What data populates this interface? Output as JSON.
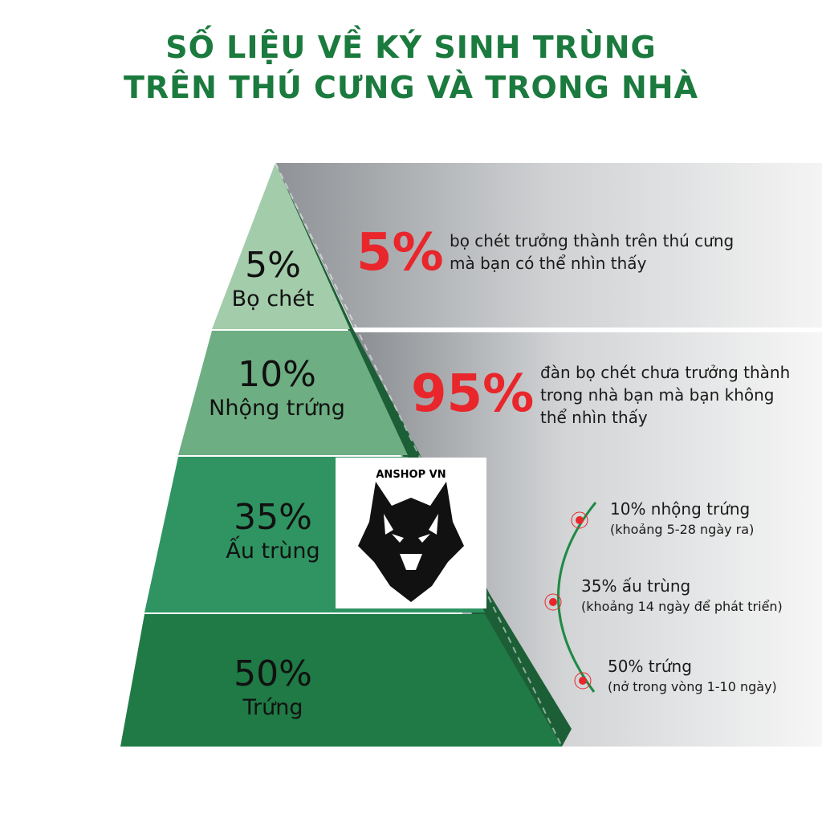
{
  "title": {
    "line1": "SỐ LIỆU VỀ KÝ SINH TRÙNG",
    "line2": "TRÊN THÚ CƯNG VÀ TRONG NHÀ"
  },
  "pyramid": [
    {
      "pct": "5%",
      "label": "Bọ chét",
      "color": "#a3ccaa"
    },
    {
      "pct": "10%",
      "label": "Nhộng trứng",
      "color": "#6dae82"
    },
    {
      "pct": "35%",
      "label": "Ấu trùng",
      "color": "#2f9462"
    },
    {
      "pct": "50%",
      "label": "Trứng",
      "color": "#1f7a45"
    }
  ],
  "callouts": [
    {
      "big": "5%",
      "text1": "bọ chét trưởng thành trên thú cưng",
      "text2": "mà bạn có thể nhìn thấy"
    },
    {
      "big": "95%",
      "text1": "đàn bọ chét chưa trưởng thành",
      "text2": "trong nhà bạn mà bạn không",
      "text3": "thể nhìn thấy"
    }
  ],
  "stages": [
    {
      "head": "10% nhộng trứng",
      "sub": "(khoảng 5-28 ngày ra)"
    },
    {
      "head": "35% ấu trùng",
      "sub": "(khoảng 14 ngày để phát triển)"
    },
    {
      "head": "50% trứng",
      "sub": "(nở trong vòng 1-10 ngày)"
    }
  ],
  "logo": {
    "brand": "ANSHOP VN",
    "icon": "wolf-head-icon"
  },
  "colors": {
    "title": "#1b7a3d",
    "accent_red": "#e8262b"
  }
}
